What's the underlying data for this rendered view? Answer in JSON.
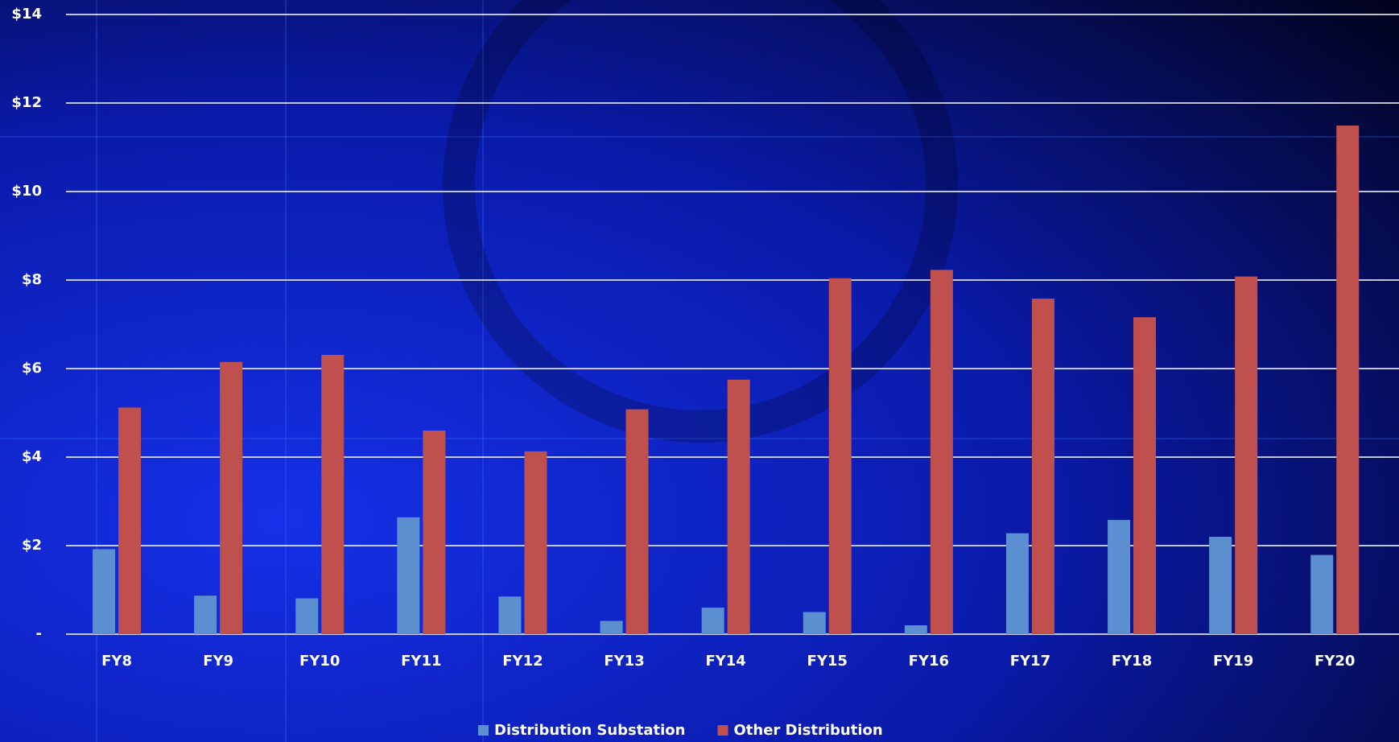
{
  "chart_data": {
    "type": "bar",
    "categories": [
      "FY8",
      "FY9",
      "FY10",
      "FY11",
      "FY12",
      "FY13",
      "FY14",
      "FY15",
      "FY16",
      "FY17",
      "FY18",
      "FY19",
      "FY20"
    ],
    "series": [
      {
        "name": "Distribution Substation",
        "color": "#5b8fcf",
        "values": [
          1.92,
          0.87,
          0.81,
          2.64,
          0.85,
          0.3,
          0.6,
          0.5,
          0.2,
          2.28,
          2.58,
          2.2,
          1.79
        ]
      },
      {
        "name": "Other Distribution",
        "color": "#c0504d",
        "values": [
          5.12,
          6.15,
          6.31,
          4.6,
          4.13,
          5.08,
          5.75,
          8.04,
          8.23,
          7.58,
          7.16,
          8.08,
          11.49
        ]
      }
    ],
    "ylim": [
      0,
      14
    ],
    "yticks": [
      {
        "value": 0,
        "label": "-"
      },
      {
        "value": 2,
        "label": "$2"
      },
      {
        "value": 4,
        "label": "$4"
      },
      {
        "value": 6,
        "label": "$6"
      },
      {
        "value": 8,
        "label": "$8"
      },
      {
        "value": 10,
        "label": "$10"
      },
      {
        "value": 12,
        "label": "$12"
      },
      {
        "value": 14,
        "label": "$14"
      }
    ],
    "grid": true,
    "legend": "bottom"
  }
}
